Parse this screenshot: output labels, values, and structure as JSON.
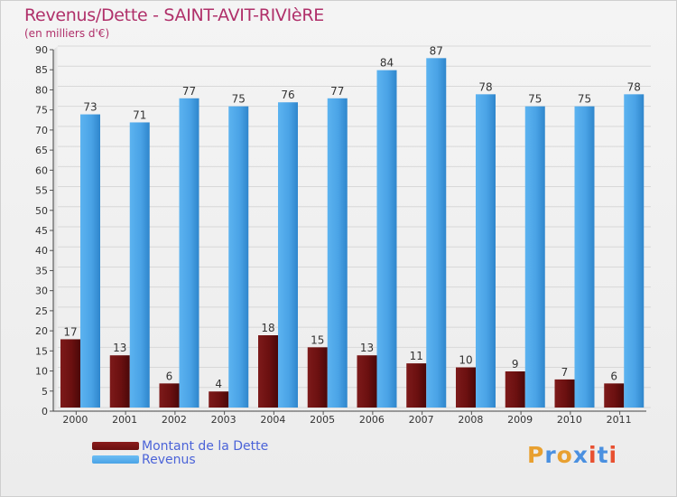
{
  "title": "Revenus/Dette - SAINT-AVIT-RIVIèRE",
  "subtitle": "(en milliers d'€)",
  "logo_text": "Proxiti",
  "colors": {
    "title": "#b0306a",
    "dette": "#6b1010",
    "revenus": "#4aa3e6",
    "legend_text": "#4b63d8",
    "logo": [
      "#e8a030",
      "#4a90e0",
      "#e8a030",
      "#4a90e0",
      "#e85030",
      "#4a90e0",
      "#e85030"
    ]
  },
  "chart_data": {
    "type": "bar",
    "title": "Revenus/Dette - SAINT-AVIT-RIVIèRE",
    "subtitle": "(en milliers d'€)",
    "categories": [
      "2000",
      "2001",
      "2002",
      "2003",
      "2004",
      "2005",
      "2006",
      "2007",
      "2008",
      "2009",
      "2010",
      "2011"
    ],
    "series": [
      {
        "name": "Montant de la Dette",
        "values": [
          17,
          13,
          6,
          4,
          18,
          15,
          13,
          11,
          10,
          9,
          7,
          6
        ]
      },
      {
        "name": "Revenus",
        "values": [
          73,
          71,
          77,
          75,
          76,
          77,
          84,
          87,
          78,
          75,
          75,
          78
        ]
      }
    ],
    "ylim": [
      0,
      90
    ],
    "yticks": [
      0,
      5,
      10,
      15,
      20,
      25,
      30,
      35,
      40,
      45,
      50,
      55,
      60,
      65,
      70,
      75,
      80,
      85,
      90
    ],
    "grid": true,
    "legend_position": "bottom-left"
  }
}
